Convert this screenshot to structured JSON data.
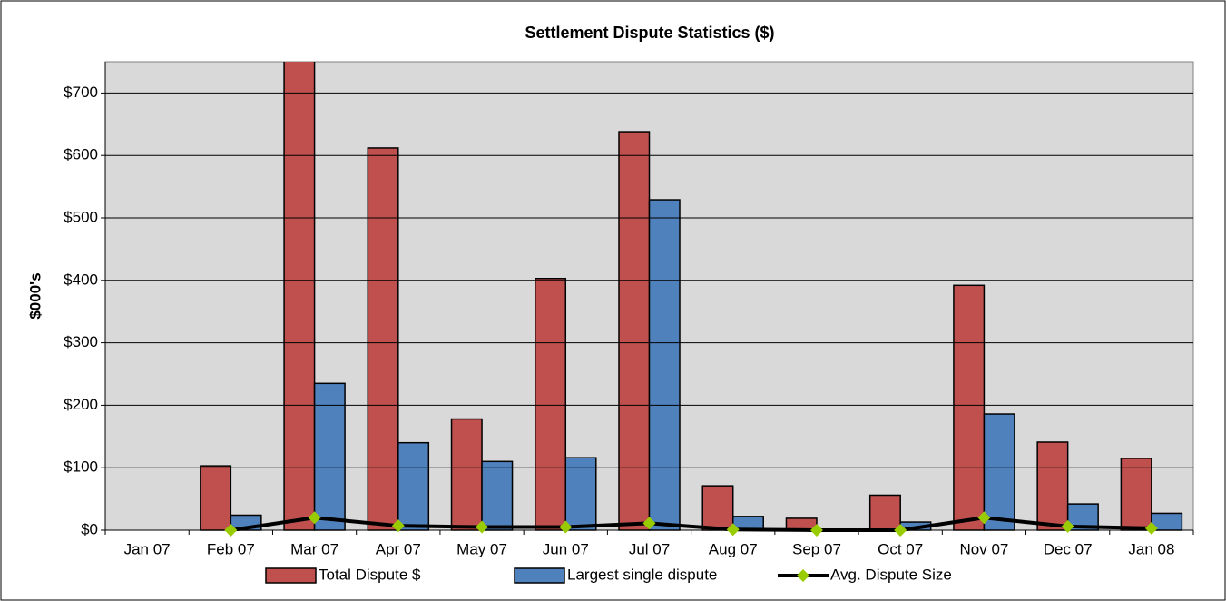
{
  "chart_data": {
    "type": "bar",
    "title": "Settlement Dispute Statistics ($)",
    "y_label": "$000's",
    "categories": [
      "Jan 07",
      "Feb 07",
      "Mar 07",
      "Apr 07",
      "May 07",
      "Jun 07",
      "Jul 07",
      "Aug 07",
      "Sep 07",
      "Oct 07",
      "Nov 07",
      "Dec 07",
      "Jan 08"
    ],
    "series": [
      {
        "name": "Total Dispute $",
        "type": "bar",
        "color": "#c0504d",
        "values": [
          null,
          103,
          800,
          612,
          178,
          403,
          638,
          71,
          19,
          56,
          392,
          141,
          115
        ]
      },
      {
        "name": "Largest single dispute",
        "type": "bar",
        "color": "#4f81bd",
        "values": [
          null,
          24,
          235,
          140,
          110,
          116,
          529,
          22,
          null,
          13,
          186,
          42,
          27
        ]
      },
      {
        "name": "Avg. Dispute Size",
        "type": "line",
        "color": "#000000",
        "marker_color": "#99cc00",
        "values": [
          null,
          0,
          20,
          7,
          5,
          5,
          11,
          1,
          0,
          0,
          20,
          6,
          3
        ]
      }
    ],
    "ylim": [
      0,
      750
    ],
    "yticks": [
      {
        "value": 0,
        "label": "$0"
      },
      {
        "value": 100,
        "label": "$100"
      },
      {
        "value": 200,
        "label": "$200"
      },
      {
        "value": 300,
        "label": "$300"
      },
      {
        "value": 400,
        "label": "$400"
      },
      {
        "value": 500,
        "label": "$500"
      },
      {
        "value": 600,
        "label": "$600"
      },
      {
        "value": 700,
        "label": "$700"
      }
    ],
    "grid": true,
    "legend": "bottom"
  }
}
